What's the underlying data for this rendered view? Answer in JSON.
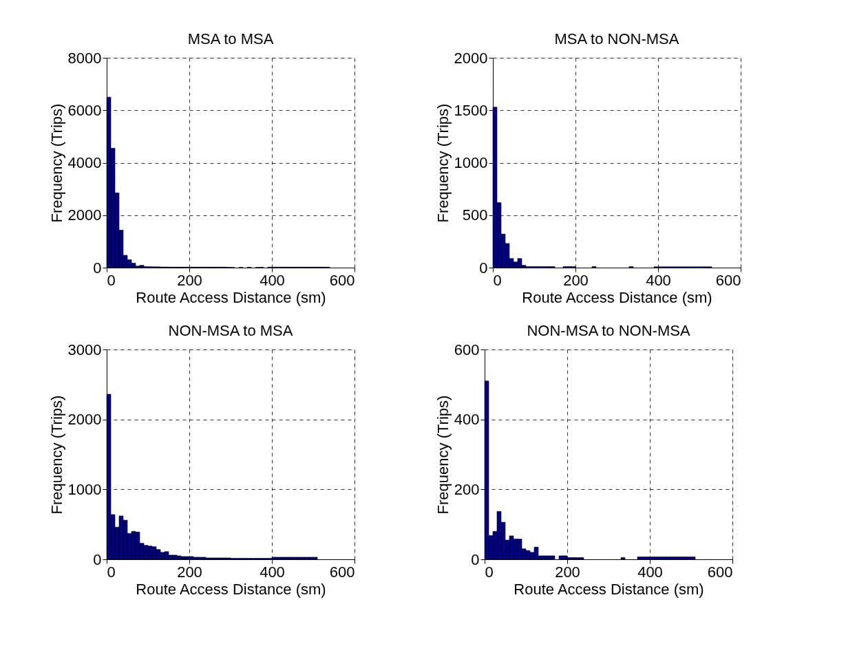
{
  "chart_data": [
    {
      "type": "histogram",
      "title": "MSA to MSA",
      "xlabel": "Route Access Distance (sm)",
      "ylabel": "Frequency (Trips)",
      "color": "#000080",
      "grid": true,
      "xlim": [
        0,
        600
      ],
      "xticks": [
        0,
        200,
        400,
        600
      ],
      "ylim": [
        0,
        8000
      ],
      "yticks": [
        0,
        2000,
        4000,
        6000,
        8000
      ],
      "bins": [
        0,
        10,
        20,
        30,
        40,
        50,
        60,
        70,
        80,
        90,
        100,
        110,
        120,
        130,
        140,
        150,
        160,
        170,
        180,
        190,
        200,
        210,
        220,
        230,
        240,
        250,
        260,
        270,
        280,
        290,
        300,
        310,
        320,
        330,
        340,
        350,
        360,
        370,
        380,
        390,
        400,
        410,
        420,
        430,
        440,
        450,
        460,
        470,
        480,
        490,
        500,
        510,
        520,
        530,
        540
      ],
      "values": [
        6500,
        4550,
        2850,
        1430,
        470,
        300,
        170,
        60,
        90,
        40,
        35,
        30,
        30,
        25,
        25,
        20,
        20,
        20,
        20,
        20,
        20,
        20,
        20,
        20,
        20,
        20,
        20,
        20,
        20,
        15,
        10,
        0,
        10,
        0,
        15,
        0,
        10,
        15,
        0,
        20,
        20,
        20,
        20,
        20,
        20,
        20,
        20,
        20,
        20,
        20,
        20,
        20,
        20,
        20
      ]
    },
    {
      "type": "histogram",
      "title": "MSA to NON-MSA",
      "xlabel": "Route Access Distance (sm)",
      "ylabel": "Frequency (Trips)",
      "color": "#000080",
      "grid": true,
      "xlim": [
        0,
        600
      ],
      "xticks": [
        0,
        200,
        400,
        600
      ],
      "ylim": [
        0,
        2000
      ],
      "yticks": [
        0,
        500,
        1000,
        1500,
        2000
      ],
      "bins": [
        0,
        10,
        20,
        30,
        40,
        50,
        60,
        70,
        80,
        90,
        100,
        110,
        120,
        130,
        140,
        150,
        160,
        170,
        180,
        190,
        200,
        210,
        220,
        230,
        240,
        250,
        260,
        270,
        280,
        290,
        300,
        310,
        320,
        330,
        340,
        350,
        360,
        370,
        380,
        390,
        400,
        410,
        420,
        430,
        440,
        450,
        460,
        470,
        480,
        490,
        500,
        510,
        520,
        530,
        540
      ],
      "values": [
        1530,
        620,
        320,
        230,
        87,
        54,
        87,
        22,
        10,
        10,
        10,
        10,
        10,
        10,
        10,
        0,
        0,
        10,
        10,
        10,
        0,
        0,
        0,
        0,
        10,
        0,
        0,
        0,
        0,
        0,
        0,
        0,
        0,
        10,
        0,
        0,
        0,
        0,
        0,
        8,
        8,
        8,
        8,
        8,
        8,
        8,
        8,
        8,
        8,
        8,
        8,
        8,
        8,
        0
      ]
    },
    {
      "type": "histogram",
      "title": "NON-MSA to MSA",
      "xlabel": "Route Access Distance (sm)",
      "ylabel": "Frequency (Trips)",
      "color": "#000080",
      "grid": true,
      "xlim": [
        0,
        600
      ],
      "xticks": [
        0,
        200,
        400,
        600
      ],
      "ylim": [
        0,
        3000
      ],
      "yticks": [
        0,
        1000,
        2000,
        3000
      ],
      "bins": [
        0,
        10,
        20,
        30,
        40,
        50,
        60,
        70,
        80,
        90,
        100,
        110,
        120,
        130,
        140,
        150,
        160,
        170,
        180,
        190,
        200,
        210,
        220,
        230,
        240,
        250,
        260,
        270,
        280,
        290,
        300,
        310,
        320,
        330,
        340,
        350,
        360,
        370,
        380,
        390,
        400,
        410,
        420,
        430,
        440,
        450,
        460,
        470,
        480,
        490,
        500,
        510,
        520,
        530,
        540
      ],
      "values": [
        2360,
        640,
        460,
        620,
        560,
        370,
        400,
        390,
        230,
        200,
        190,
        180,
        140,
        100,
        110,
        60,
        60,
        50,
        40,
        40,
        40,
        30,
        30,
        30,
        20,
        20,
        20,
        20,
        20,
        20,
        15,
        15,
        15,
        15,
        15,
        15,
        15,
        15,
        15,
        15,
        30,
        30,
        30,
        30,
        30,
        30,
        30,
        30,
        30,
        30,
        30,
        0,
        0,
        0
      ]
    },
    {
      "type": "histogram",
      "title": "NON-MSA to NON-MSA",
      "xlabel": "Route Access Distance (sm)",
      "ylabel": "Frequency (Trips)",
      "color": "#000080",
      "grid": true,
      "xlim": [
        0,
        600
      ],
      "xticks": [
        0,
        200,
        400,
        600
      ],
      "ylim": [
        0,
        600
      ],
      "yticks": [
        0,
        200,
        400,
        600
      ],
      "bins": [
        0,
        10,
        20,
        30,
        40,
        50,
        60,
        70,
        80,
        90,
        100,
        110,
        120,
        130,
        140,
        150,
        160,
        170,
        180,
        190,
        200,
        210,
        220,
        230,
        240,
        250,
        260,
        270,
        280,
        290,
        300,
        310,
        320,
        330,
        340,
        350,
        360,
        370,
        380,
        390,
        400,
        410,
        420,
        430,
        440,
        450,
        460,
        470,
        480,
        490,
        500,
        510,
        520,
        530,
        540
      ],
      "values": [
        510,
        68,
        80,
        137,
        106,
        55,
        67,
        58,
        58,
        30,
        25,
        20,
        35,
        10,
        10,
        10,
        10,
        0,
        10,
        10,
        5,
        5,
        5,
        5,
        0,
        0,
        0,
        0,
        0,
        0,
        0,
        0,
        0,
        5,
        0,
        0,
        0,
        7,
        7,
        7,
        7,
        7,
        7,
        7,
        7,
        7,
        7,
        7,
        7,
        7,
        7,
        0,
        0,
        0
      ]
    }
  ]
}
